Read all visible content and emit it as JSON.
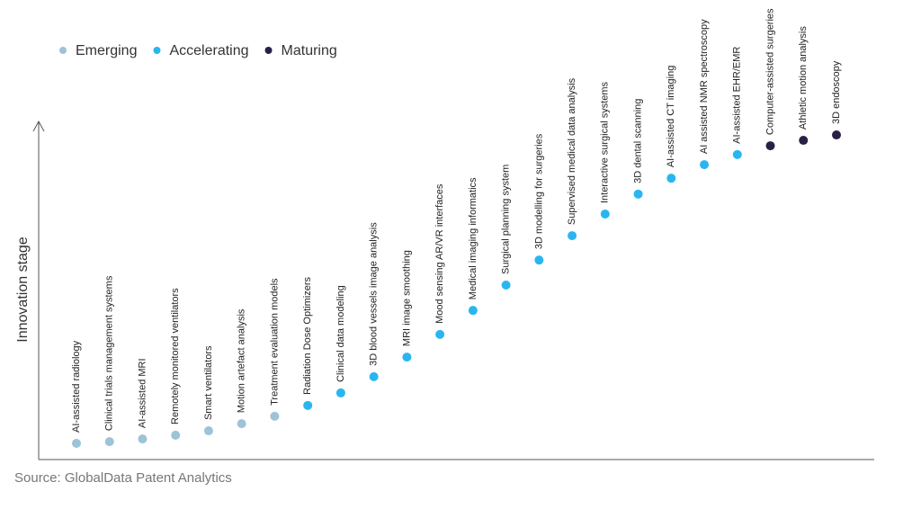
{
  "chart_data": {
    "type": "scatter",
    "y_label": "Innovation stage",
    "source": "Source: GlobalData Patent Analytics",
    "ylim": [
      0,
      100
    ],
    "legend": "top-left",
    "categories": [
      "AI-assisted radiology",
      "Clinical trials management systems",
      "AI-assisted MRI",
      "Remotely monitored ventilators",
      "Smart ventilators",
      "Motion artefact analysis",
      "Treatment evaluation models",
      "Radiation Dose Optimizers",
      "Clinical data modeling",
      "3D blood vessels image analysis",
      "MRI image smoothing",
      "Mood sensing AR/VR interfaces",
      "Medical imaging informatics",
      "Surgical planning system",
      "3D modelling for surgeries",
      "Supervised medical data analysis",
      "Interactive surgical systems",
      "3D dental scanning",
      "AI-assisted CT imaging",
      "AI assisted NMR spectroscopy",
      "AI-assisted EHR/EMR",
      "Computer-assisted surgeries",
      "Athletic motion analysis",
      "3D endoscopy"
    ],
    "series": [
      {
        "name": "Emerging",
        "color": "#9dc3d8",
        "values": [
          4.8,
          5.3,
          6.1,
          7.2,
          8.5,
          10.6,
          12.8,
          null,
          null,
          null,
          null,
          null,
          null,
          null,
          null,
          null,
          null,
          null,
          null,
          null,
          null,
          null,
          null,
          null
        ]
      },
      {
        "name": "Accelerating",
        "color": "#29b6f0",
        "values": [
          null,
          null,
          null,
          null,
          null,
          null,
          null,
          16.0,
          19.7,
          24.5,
          30.3,
          37.0,
          44.1,
          51.6,
          59.0,
          66.2,
          72.6,
          78.5,
          83.2,
          87.2,
          90.2,
          null,
          null,
          null
        ]
      },
      {
        "name": "Maturing",
        "color": "#2a1f45",
        "values": [
          null,
          null,
          null,
          null,
          null,
          null,
          null,
          null,
          null,
          null,
          null,
          null,
          null,
          null,
          null,
          null,
          null,
          null,
          null,
          null,
          null,
          92.8,
          94.4,
          96.0
        ]
      }
    ]
  }
}
